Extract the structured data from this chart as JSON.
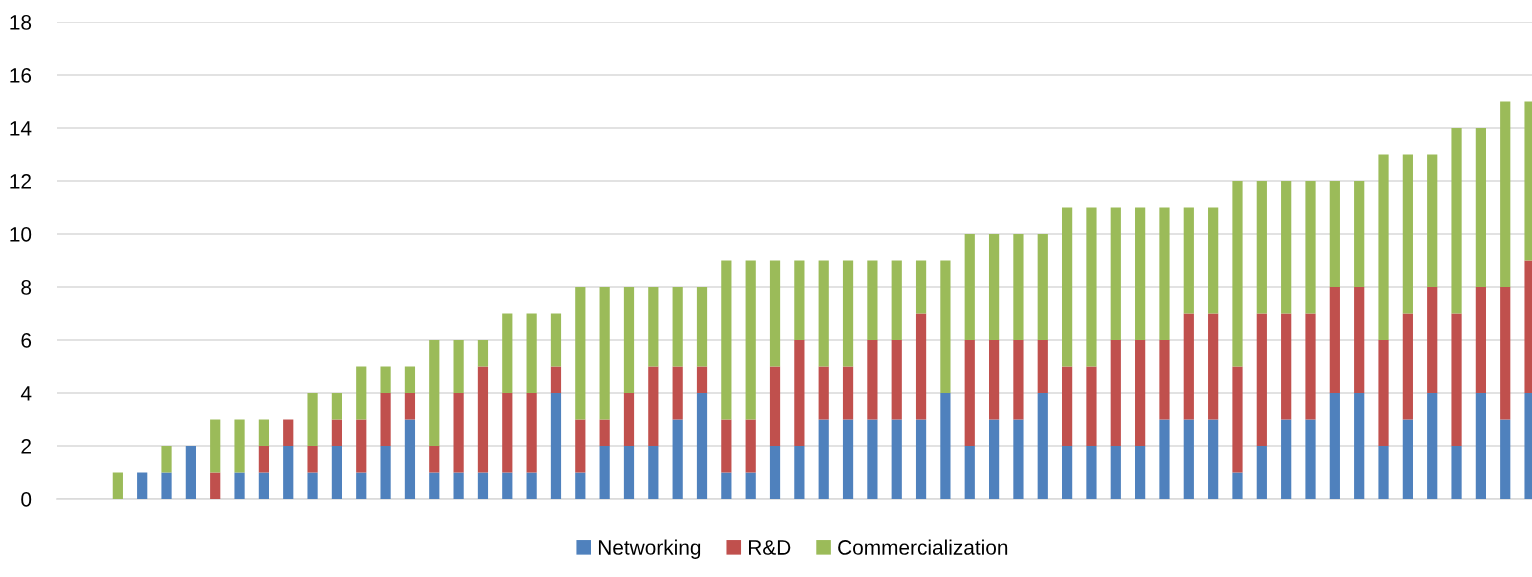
{
  "chart_data": {
    "type": "bar",
    "stacked": true,
    "categories": [
      null,
      null,
      null,
      null,
      null,
      null,
      null,
      null,
      null,
      null,
      null,
      null,
      null,
      null,
      null,
      null,
      null,
      null,
      null,
      null,
      null,
      null,
      null,
      null,
      null,
      null,
      null,
      null,
      null,
      null,
      null,
      null,
      null,
      null,
      null,
      null,
      null,
      null,
      null,
      null,
      null,
      null,
      null,
      null,
      null,
      null,
      null,
      null,
      null,
      null,
      null,
      null,
      null,
      null,
      null,
      null,
      null,
      null,
      null,
      null,
      null
    ],
    "series": [
      {
        "name": "Networking",
        "color": "#4f81bd",
        "values": [
          null,
          null,
          0,
          1,
          1,
          2,
          0,
          1,
          1,
          2,
          1,
          2,
          1,
          2,
          3,
          1,
          1,
          1,
          1,
          1,
          4,
          1,
          2,
          2,
          2,
          3,
          4,
          1,
          1,
          2,
          2,
          3,
          3,
          3,
          3,
          3,
          4,
          2,
          3,
          3,
          4,
          2,
          2,
          2,
          2,
          3,
          3,
          3,
          1,
          2,
          3,
          3,
          4,
          4,
          2,
          3,
          4,
          2,
          4,
          3,
          4
        ]
      },
      {
        "name": "R&D",
        "color": "#c0504d",
        "values": [
          null,
          null,
          0,
          0,
          0,
          0,
          1,
          0,
          1,
          1,
          1,
          1,
          2,
          2,
          1,
          1,
          3,
          4,
          3,
          3,
          1,
          2,
          1,
          2,
          3,
          2,
          1,
          2,
          2,
          3,
          4,
          2,
          2,
          3,
          3,
          4,
          0,
          4,
          3,
          3,
          2,
          3,
          3,
          4,
          4,
          3,
          4,
          4,
          4,
          5,
          4,
          4,
          4,
          4,
          4,
          4,
          4,
          5,
          4,
          5,
          5
        ]
      },
      {
        "name": "Commercialization",
        "color": "#9bbb59",
        "values": [
          null,
          null,
          1,
          0,
          1,
          0,
          2,
          2,
          1,
          0,
          2,
          1,
          2,
          1,
          1,
          4,
          2,
          1,
          3,
          3,
          2,
          5,
          5,
          4,
          3,
          3,
          3,
          6,
          6,
          4,
          3,
          4,
          4,
          3,
          3,
          2,
          5,
          4,
          4,
          4,
          4,
          6,
          6,
          5,
          5,
          5,
          4,
          4,
          7,
          5,
          5,
          5,
          4,
          4,
          7,
          6,
          5,
          7,
          6,
          7,
          6
        ]
      }
    ],
    "ylim": [
      0,
      18
    ],
    "yticks": [
      0,
      2,
      4,
      6,
      8,
      10,
      12,
      14,
      16,
      18
    ],
    "grid": "y",
    "legend": "bottom"
  }
}
